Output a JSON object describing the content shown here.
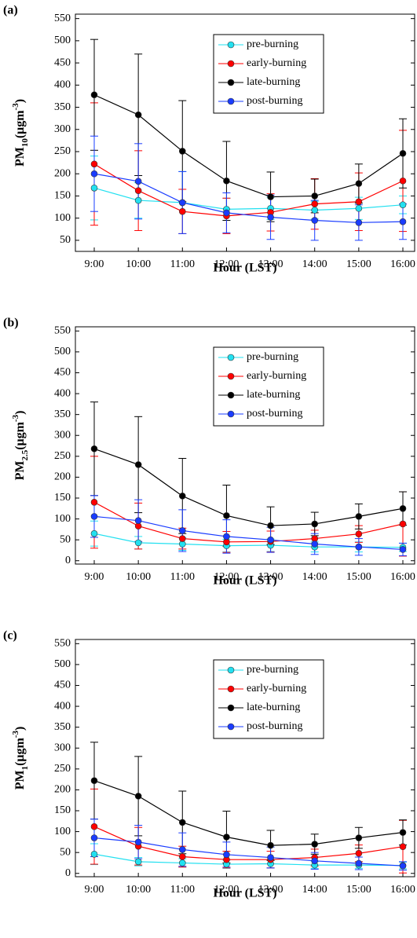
{
  "chart_data": [
    {
      "type": "line",
      "panel_label": "(a)",
      "ylabel": [
        "PM",
        "10",
        "(μgm",
        "-3",
        ")"
      ],
      "xlabel": "Hour (LST)",
      "categories": [
        "9:00",
        "10:00",
        "11:00",
        "12:00",
        "13:00",
        "14:00",
        "15:00",
        "16:00"
      ],
      "ylim": [
        25,
        560
      ],
      "yticks": [
        50,
        100,
        150,
        200,
        250,
        300,
        350,
        400,
        450,
        500,
        550
      ],
      "legend": "upper center",
      "series": [
        {
          "name": "pre-burning",
          "color": "#22e0f0",
          "values": [
            168,
            140,
            135,
            120,
            122,
            118,
            122,
            130
          ],
          "errors": [
            72,
            40,
            70,
            25,
            25,
            20,
            25,
            20
          ]
        },
        {
          "name": "early-burning",
          "color": "#ff0000",
          "values": [
            222,
            162,
            115,
            105,
            113,
            132,
            137,
            184
          ],
          "errors": [
            138,
            90,
            50,
            40,
            42,
            57,
            65,
            114
          ]
        },
        {
          "name": "late-burning",
          "color": "#000000",
          "values": [
            378,
            333,
            251,
            184,
            148,
            150,
            178,
            246
          ],
          "errors": [
            125,
            137,
            114,
            89,
            56,
            38,
            44,
            78
          ]
        },
        {
          "name": "post-burning",
          "color": "#1a3cff",
          "values": [
            200,
            183,
            135,
            112,
            102,
            95,
            90,
            92
          ],
          "errors": [
            85,
            85,
            70,
            45,
            50,
            45,
            40,
            40
          ]
        }
      ]
    },
    {
      "type": "line",
      "panel_label": "(b)",
      "ylabel": [
        "PM",
        "2.5",
        "(μgm",
        "-3",
        ")"
      ],
      "xlabel": "Hour (LST)",
      "categories": [
        "9:00",
        "10:00",
        "11:00",
        "12:00",
        "13:00",
        "14:00",
        "15:00",
        "16:00"
      ],
      "ylim": [
        -8,
        560
      ],
      "yticks": [
        0,
        50,
        100,
        150,
        200,
        250,
        300,
        350,
        400,
        450,
        500,
        550
      ],
      "legend": "upper center",
      "series": [
        {
          "name": "pre-burning",
          "color": "#22e0f0",
          "values": [
            65,
            43,
            40,
            36,
            37,
            33,
            33,
            32
          ],
          "errors": [
            30,
            15,
            15,
            15,
            15,
            12,
            12,
            10
          ]
        },
        {
          "name": "early-burning",
          "color": "#ff0000",
          "values": [
            140,
            83,
            53,
            45,
            46,
            53,
            64,
            88
          ],
          "errors": [
            110,
            55,
            25,
            25,
            25,
            20,
            20,
            77
          ]
        },
        {
          "name": "late-burning",
          "color": "#000000",
          "values": [
            268,
            230,
            155,
            108,
            84,
            88,
            106,
            125
          ],
          "errors": [
            112,
            115,
            90,
            73,
            45,
            28,
            30,
            40
          ]
        },
        {
          "name": "post-burning",
          "color": "#1a3cff",
          "values": [
            106,
            96,
            72,
            58,
            50,
            40,
            33,
            27
          ],
          "errors": [
            50,
            50,
            50,
            40,
            30,
            25,
            20,
            15
          ]
        }
      ]
    },
    {
      "type": "line",
      "panel_label": "(c)",
      "ylabel": [
        "PM",
        "1",
        "(μgm",
        "-3",
        ")"
      ],
      "xlabel": "Hour (LST)",
      "categories": [
        "9:00",
        "10:00",
        "11:00",
        "12:00",
        "13:00",
        "14:00",
        "15:00",
        "16:00"
      ],
      "ylim": [
        -8,
        560
      ],
      "yticks": [
        0,
        50,
        100,
        150,
        200,
        250,
        300,
        350,
        400,
        450,
        500,
        550
      ],
      "legend": "upper center",
      "series": [
        {
          "name": "pre-burning",
          "color": "#22e0f0",
          "values": [
            46,
            28,
            25,
            22,
            23,
            20,
            20,
            19
          ],
          "errors": [
            25,
            10,
            10,
            10,
            10,
            8,
            8,
            8
          ]
        },
        {
          "name": "early-burning",
          "color": "#ff0000",
          "values": [
            112,
            65,
            40,
            33,
            33,
            38,
            48,
            64
          ],
          "errors": [
            90,
            45,
            25,
            20,
            20,
            20,
            20,
            63
          ]
        },
        {
          "name": "late-burning",
          "color": "#000000",
          "values": [
            222,
            185,
            122,
            87,
            67,
            70,
            85,
            98
          ],
          "errors": [
            92,
            95,
            75,
            62,
            36,
            24,
            25,
            30
          ]
        },
        {
          "name": "post-burning",
          "color": "#1a3cff",
          "values": [
            85,
            75,
            57,
            45,
            38,
            30,
            24,
            18
          ],
          "errors": [
            45,
            40,
            40,
            30,
            25,
            20,
            15,
            10
          ]
        }
      ]
    }
  ]
}
